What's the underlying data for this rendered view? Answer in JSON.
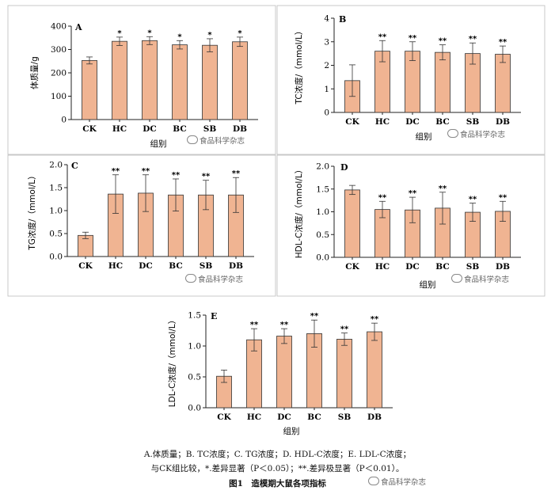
{
  "chart_data": [
    {
      "type": "bar",
      "panel_label": "A",
      "ylabel": "体质量/g",
      "xlabel": "组别",
      "categories": [
        "CK",
        "HC",
        "DC",
        "BC",
        "SB",
        "DB"
      ],
      "values": [
        253,
        335,
        338,
        320,
        318,
        333
      ],
      "errors": [
        15,
        18,
        17,
        18,
        28,
        20
      ],
      "significance": [
        "",
        "*",
        "*",
        "*",
        "*",
        "*"
      ],
      "ylim": [
        0,
        400
      ],
      "yticks": [
        0,
        100,
        200,
        300,
        400
      ],
      "tick_labels": [
        "0",
        "100",
        "200",
        "300",
        "400"
      ]
    },
    {
      "type": "bar",
      "panel_label": "B",
      "ylabel": "TC浓度/（mmol/L）",
      "xlabel": "组别",
      "categories": [
        "CK",
        "HC",
        "DC",
        "BC",
        "SB",
        "DB"
      ],
      "values": [
        1.35,
        2.6,
        2.6,
        2.55,
        2.5,
        2.47
      ],
      "errors": [
        0.67,
        0.45,
        0.4,
        0.32,
        0.45,
        0.35
      ],
      "significance": [
        "",
        "**",
        "**",
        "**",
        "**",
        "**"
      ],
      "ylim": [
        0,
        4
      ],
      "yticks": [
        0,
        1,
        2,
        3,
        4
      ],
      "tick_labels": [
        "0",
        "1",
        "2",
        "3",
        "4"
      ]
    },
    {
      "type": "bar",
      "panel_label": "C",
      "ylabel": "TG浓度/（mmol/L）",
      "xlabel": "",
      "categories": [
        "CK",
        "HC",
        "DC",
        "BC",
        "SB",
        "DB"
      ],
      "values": [
        0.46,
        1.36,
        1.38,
        1.34,
        1.34,
        1.34
      ],
      "errors": [
        0.07,
        0.42,
        0.4,
        0.35,
        0.32,
        0.38
      ],
      "significance": [
        "",
        "**",
        "**",
        "**",
        "**",
        "**"
      ],
      "ylim": [
        0,
        2.0
      ],
      "yticks": [
        0,
        0.5,
        1.0,
        1.5,
        2.0
      ],
      "tick_labels": [
        "0.0",
        "0.5",
        "1.0",
        "1.5",
        "2.0"
      ]
    },
    {
      "type": "bar",
      "panel_label": "D",
      "ylabel": "HDL-C浓度/（mmol/L）",
      "xlabel": "组别",
      "categories": [
        "CK",
        "HC",
        "DC",
        "BC",
        "SB",
        "DB"
      ],
      "values": [
        1.48,
        1.05,
        1.04,
        1.08,
        0.99,
        1.01
      ],
      "errors": [
        0.1,
        0.18,
        0.28,
        0.35,
        0.2,
        0.22
      ],
      "significance": [
        "",
        "**",
        "**",
        "**",
        "**",
        "**"
      ],
      "ylim": [
        0,
        2.0
      ],
      "yticks": [
        0,
        0.5,
        1.0,
        1.5,
        2.0
      ],
      "tick_labels": [
        "0.0",
        "0.5",
        "1.0",
        "1.5",
        "2.0"
      ]
    },
    {
      "type": "bar",
      "panel_label": "E",
      "ylabel": "LDL-C浓度/（mmol/L）",
      "xlabel": "组别",
      "categories": [
        "CK",
        "HC",
        "DC",
        "BC",
        "SB",
        "DB"
      ],
      "values": [
        0.51,
        1.1,
        1.16,
        1.2,
        1.11,
        1.23
      ],
      "errors": [
        0.1,
        0.18,
        0.12,
        0.22,
        0.1,
        0.14
      ],
      "significance": [
        "",
        "**",
        "**",
        "**",
        "**",
        "**"
      ],
      "ylim": [
        0,
        1.5
      ],
      "yticks": [
        0,
        0.5,
        1.0,
        1.5
      ],
      "tick_labels": [
        "0.0",
        "0.5",
        "1.0",
        "1.5"
      ]
    }
  ],
  "caption": {
    "line1": "A.体质量；B. TC浓度；C. TG浓度；D. HDL-C浓度；E. LDL-C浓度；",
    "line2": "与CK组比较，*.差异显著（P＜0.05）；**.差异极显著（P＜0.01）。",
    "line3": "图1　造模期大鼠各项指标"
  },
  "watermark": "食品科学杂志",
  "colors": {
    "bar_fill": "#f0b492",
    "bar_stroke": "#333333",
    "axis": "#222222",
    "panel_border": "#bbbbbb"
  }
}
